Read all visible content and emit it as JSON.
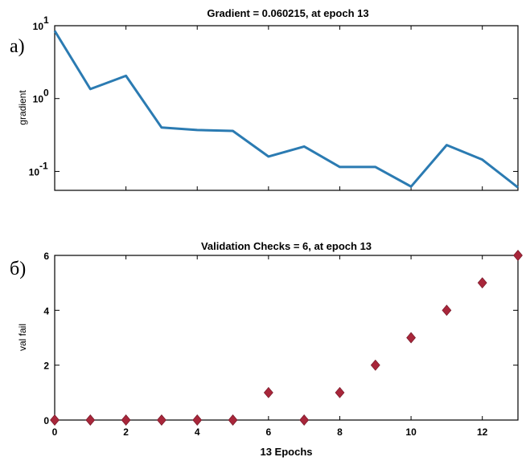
{
  "chart_data": [
    {
      "type": "line",
      "panel_label": "а)",
      "title": "Gradient = 0.060215, at epoch 13",
      "xlabel": "",
      "ylabel": "gradient",
      "yscale": "log",
      "xlim": [
        0,
        13
      ],
      "ylim": [
        0.055,
        10
      ],
      "yticks": [
        {
          "value": 10,
          "base": "10",
          "exp": "1"
        },
        {
          "value": 1,
          "base": "10",
          "exp": "0"
        },
        {
          "value": 0.1,
          "base": "10",
          "exp": "-1"
        }
      ],
      "x": [
        0,
        1,
        2,
        3,
        4,
        5,
        6,
        7,
        8,
        9,
        10,
        11,
        12,
        13
      ],
      "series": [
        {
          "values": [
            8.5,
            1.35,
            2.05,
            0.4,
            0.37,
            0.36,
            0.16,
            0.22,
            0.115,
            0.115,
            0.062,
            0.23,
            0.145,
            0.060215
          ],
          "color": "#2b7bb2"
        }
      ]
    },
    {
      "type": "scatter",
      "panel_label": "б)",
      "title": "Validation Checks = 6, at epoch 13",
      "xlabel": "13 Epochs",
      "ylabel": "val fail",
      "xlim": [
        0,
        13
      ],
      "ylim": [
        0,
        6
      ],
      "xticks": [
        0,
        2,
        4,
        6,
        8,
        10,
        12
      ],
      "yticks": [
        0,
        2,
        4,
        6
      ],
      "x": [
        0,
        1,
        2,
        3,
        4,
        5,
        6,
        7,
        8,
        9,
        10,
        11,
        12,
        13
      ],
      "series": [
        {
          "values": [
            0,
            0,
            0,
            0,
            0,
            0,
            1,
            0,
            1,
            2,
            3,
            4,
            5,
            6
          ],
          "color": "#a8263a",
          "marker": "diamond"
        }
      ]
    }
  ]
}
